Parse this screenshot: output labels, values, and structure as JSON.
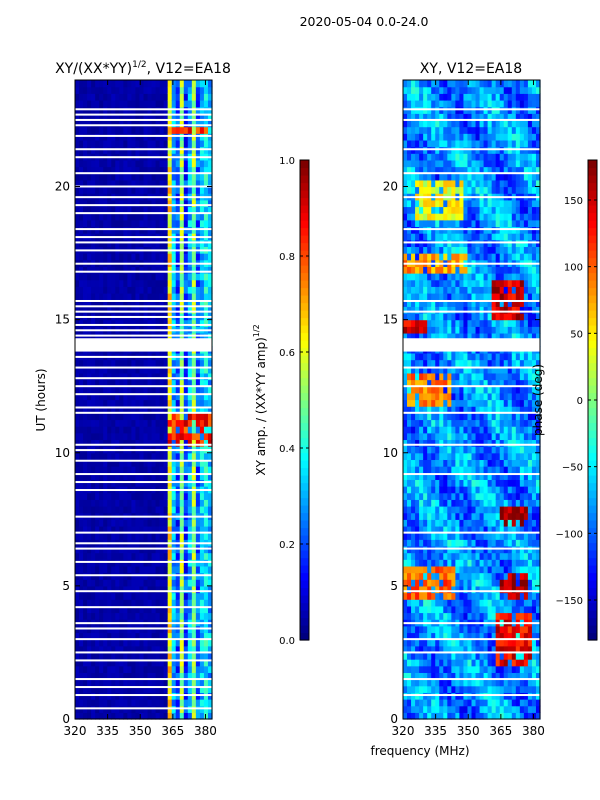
{
  "figure": {
    "suptitle": "2020-05-04 0.0-24.0",
    "shared_xlabel": "frequency (MHz)"
  },
  "colors": {
    "jet": [
      "#00007f",
      "#0000ff",
      "#007fff",
      "#00ffff",
      "#7fff7f",
      "#ffff00",
      "#ff7f00",
      "#ff0000",
      "#7f0000"
    ],
    "flag": "#ffffff",
    "axis": "#000000"
  },
  "chart_data": [
    {
      "type": "heatmap",
      "title_main": "XY/(XX*YY)",
      "title_sup": "1/2",
      "title_tail": ", V12=EA18",
      "xlabel": "",
      "ylabel": "UT (hours)",
      "xlim": [
        320,
        383
      ],
      "ylim": [
        0,
        24
      ],
      "xticks": [
        "320",
        "335",
        "350",
        "365",
        "380"
      ],
      "xtick_values": [
        320,
        335,
        350,
        365,
        380
      ],
      "yticks": [
        "0",
        "5",
        "10",
        "15",
        "20"
      ],
      "ytick_values": [
        0,
        5,
        10,
        15,
        20
      ],
      "colorbar": {
        "label_main": "XY amp. / (XX*YY amp)",
        "label_sup": "1/2",
        "range": [
          0.0,
          1.0
        ],
        "ticks": [
          "0.0",
          "0.2",
          "0.4",
          "0.6",
          "0.8",
          "1.0"
        ],
        "tick_values": [
          0.0,
          0.2,
          0.4,
          0.6,
          0.8,
          1.0
        ]
      },
      "description": "Mostly near-zero amplitude below 362 MHz; vertical stripes of 0.2-0.7 between 362-382 MHz with peaks near 10.3-11.3 UT and 22.1 UT",
      "low_band_level": 0.02,
      "band_start_mhz": 362,
      "stripe_centers_mhz": [
        363.5,
        366,
        369,
        372.5,
        375,
        378.5,
        381
      ],
      "stripe_levels": [
        0.65,
        0.4,
        0.55,
        0.35,
        0.6,
        0.35,
        0.55
      ],
      "hot_spans_ut": [
        [
          10.2,
          11.4
        ],
        [
          21.9,
          22.3
        ]
      ],
      "flagged_ut_rows": [
        0.4,
        0.9,
        1.2,
        1.5,
        2.2,
        2.5,
        3.0,
        3.4,
        3.6,
        4.2,
        4.8,
        5.4,
        5.9,
        6.4,
        6.6,
        7.0,
        7.6,
        8.6,
        8.9,
        9.2,
        9.7,
        10.1,
        10.3,
        11.5,
        11.7,
        12.2,
        12.5,
        12.8,
        13.2,
        13.6,
        14.4,
        14.6,
        14.8,
        15.1,
        15.3,
        15.5,
        15.7,
        16.8,
        17.1,
        17.6,
        17.9,
        18.1,
        18.4,
        19.0,
        19.3,
        19.6,
        20.0,
        20.5,
        21.1,
        21.4,
        21.9,
        22.3,
        22.5,
        22.7,
        22.9
      ],
      "flagged_ut_blocks": [
        [
          13.8,
          14.3
        ]
      ]
    },
    {
      "type": "heatmap",
      "title_main": "XY, V12=EA18",
      "title_sup": "",
      "title_tail": "",
      "xlabel": "frequency (MHz)",
      "ylabel": "",
      "xlim": [
        320,
        383
      ],
      "ylim": [
        0,
        24
      ],
      "xticks": [
        "320",
        "335",
        "350",
        "365",
        "380"
      ],
      "xtick_values": [
        320,
        335,
        350,
        365,
        380
      ],
      "yticks": [
        "0",
        "5",
        "10",
        "15",
        "20"
      ],
      "ytick_values": [
        0,
        5,
        10,
        15,
        20
      ],
      "colorbar": {
        "label_main": "phase (deg)",
        "label_sup": "",
        "range": [
          -180,
          180
        ],
        "ticks": [
          "−150",
          "−100",
          "−50",
          "0",
          "50",
          "100",
          "150"
        ],
        "tick_values": [
          -150,
          -100,
          -50,
          0,
          50,
          100,
          150
        ]
      },
      "description": "Phase in degrees, mostly around -100 to -50 (blue/cyan) with patches of +50 to +180 near 320-345 MHz at 2-6, 11-13, 17-20 UT and near 362-380 MHz at 2-9 UT and 15-16.5 UT",
      "base_phase_deg": -85,
      "hot_patches": [
        {
          "f": [
            320,
            345
          ],
          "ut": [
            4.6,
            5.8
          ],
          "deg": 100
        },
        {
          "f": [
            322,
            343
          ],
          "ut": [
            11.8,
            13.1
          ],
          "deg": 90
        },
        {
          "f": [
            320,
            350
          ],
          "ut": [
            16.8,
            17.6
          ],
          "deg": 80
        },
        {
          "f": [
            325,
            348
          ],
          "ut": [
            18.8,
            20.2
          ],
          "deg": 40
        },
        {
          "f": [
            362,
            380
          ],
          "ut": [
            2.0,
            4.0
          ],
          "deg": 140
        },
        {
          "f": [
            364,
            378
          ],
          "ut": [
            4.6,
            5.6
          ],
          "deg": 165
        },
        {
          "f": [
            362,
            378
          ],
          "ut": [
            7.3,
            8.0
          ],
          "deg": 170
        },
        {
          "f": [
            360,
            375
          ],
          "ut": [
            15.0,
            16.5
          ],
          "deg": 150
        },
        {
          "f": [
            320,
            332
          ],
          "ut": [
            14.4,
            14.9
          ],
          "deg": 150
        }
      ],
      "flagged_ut_rows": [
        0.9,
        1.5,
        2.5,
        3.0,
        3.6,
        4.8,
        6.4,
        7.0,
        9.2,
        10.3,
        11.5,
        12.5,
        13.2,
        15.3,
        15.7,
        17.1,
        17.9,
        18.4,
        19.6,
        20.5,
        21.4,
        22.5,
        22.9
      ],
      "flagged_ut_blocks": [
        [
          13.8,
          14.3
        ]
      ]
    }
  ]
}
